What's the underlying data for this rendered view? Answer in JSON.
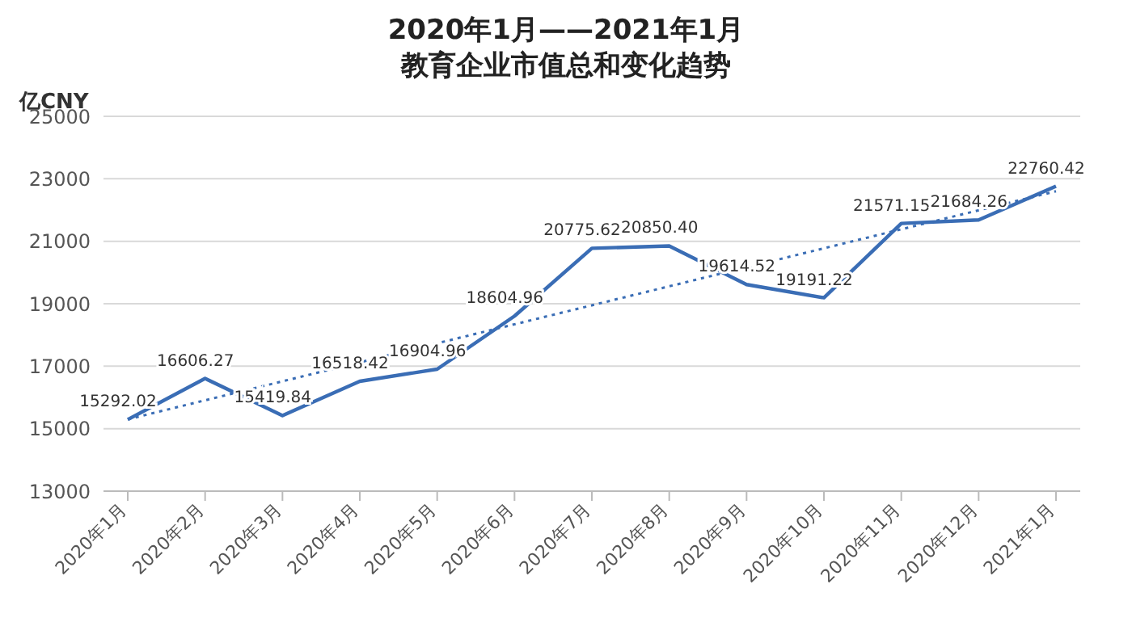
{
  "chart_data": {
    "type": "line",
    "title": "2020年1月——2021年1月",
    "subtitle": "教育企业市值总和变化趋势",
    "ylabel": "亿CNY",
    "categories": [
      "2020年1月",
      "2020年2月",
      "2020年3月",
      "2020年4月",
      "2020年5月",
      "2020年6月",
      "2020年7月",
      "2020年8月",
      "2020年9月",
      "2020年10月",
      "2020年11月",
      "2020年12月",
      "2021年1月"
    ],
    "series": [
      {
        "color": "#3a6db5",
        "line_style": "solid",
        "values": [
          15292.02,
          16606.27,
          15419.84,
          16518.42,
          16904.96,
          18604.96,
          20775.62,
          20850.4,
          19614.52,
          19191.22,
          21571.15,
          21684.26,
          22760.42
        ],
        "value_labels": [
          "15292.02",
          "16606.27",
          "15419.84",
          "16518.42",
          "16904.96",
          "18604.96",
          "20775.62",
          "20850.40",
          "19614.52",
          "19191.22",
          "21571.15",
          "21684.26",
          "22760.42"
        ]
      },
      {
        "color": "#3a6db5",
        "line_style": "dotted",
        "x": [
          "2020年1月",
          "2021年1月"
        ],
        "values": [
          15300,
          22600
        ]
      }
    ],
    "ylim": [
      13000,
      25000
    ],
    "yticks": [
      13000,
      15000,
      17000,
      19000,
      21000,
      23000,
      25000
    ],
    "grid": "y",
    "marker": "none"
  }
}
